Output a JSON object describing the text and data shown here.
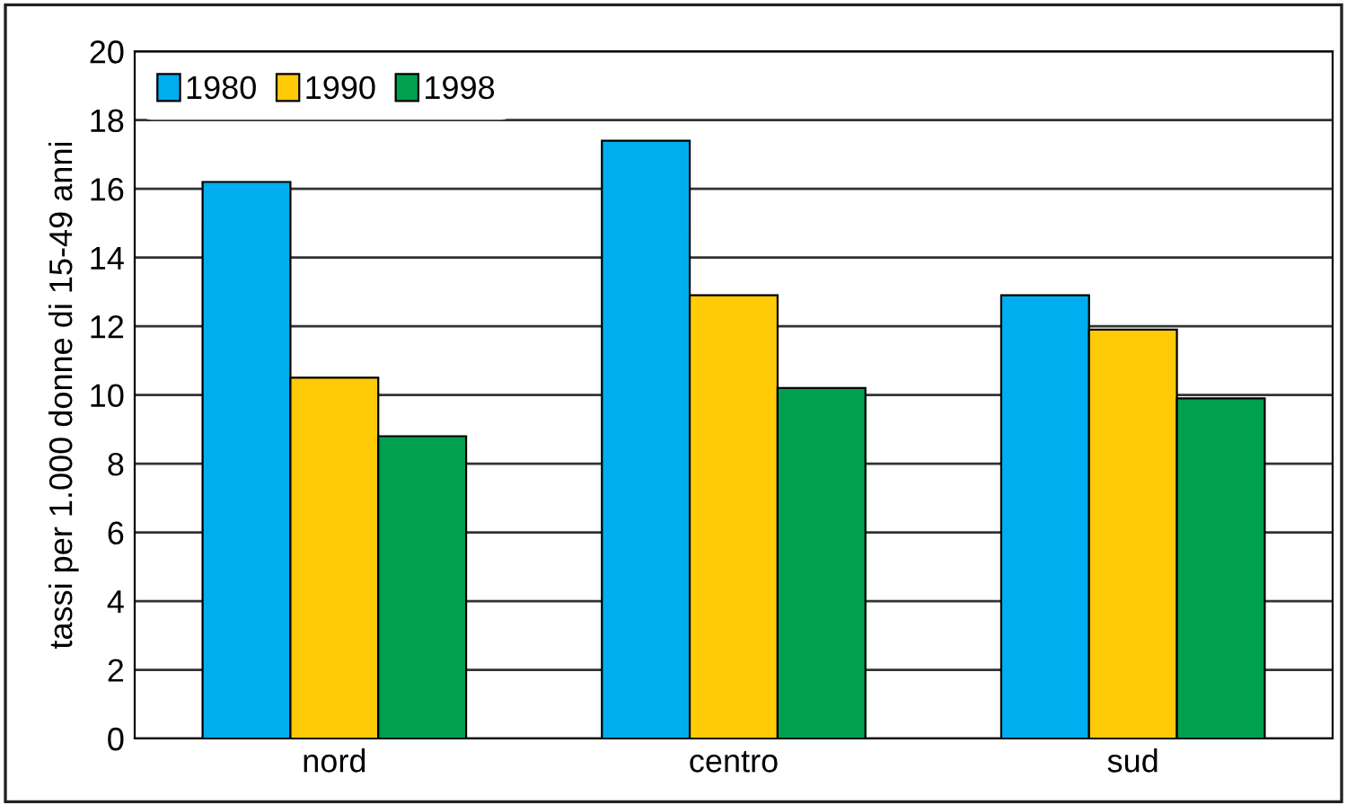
{
  "chart_data": {
    "type": "bar",
    "ylabel": "tassi per 1.000 donne di 15-49 anni",
    "categories": [
      "nord",
      "centro",
      "sud"
    ],
    "series": [
      {
        "name": "1980",
        "color": "#00aeef",
        "values": [
          16.2,
          17.4,
          12.9
        ]
      },
      {
        "name": "1990",
        "color": "#ffcb08",
        "values": [
          10.5,
          12.9,
          11.9
        ]
      },
      {
        "name": "1998",
        "color": "#00a14e",
        "values": [
          8.8,
          10.2,
          9.9
        ]
      }
    ],
    "ylim": [
      0,
      20
    ],
    "yticks": [
      0,
      2,
      4,
      6,
      8,
      10,
      12,
      14,
      16,
      18,
      20
    ],
    "grid": "y",
    "legend": "top left"
  }
}
